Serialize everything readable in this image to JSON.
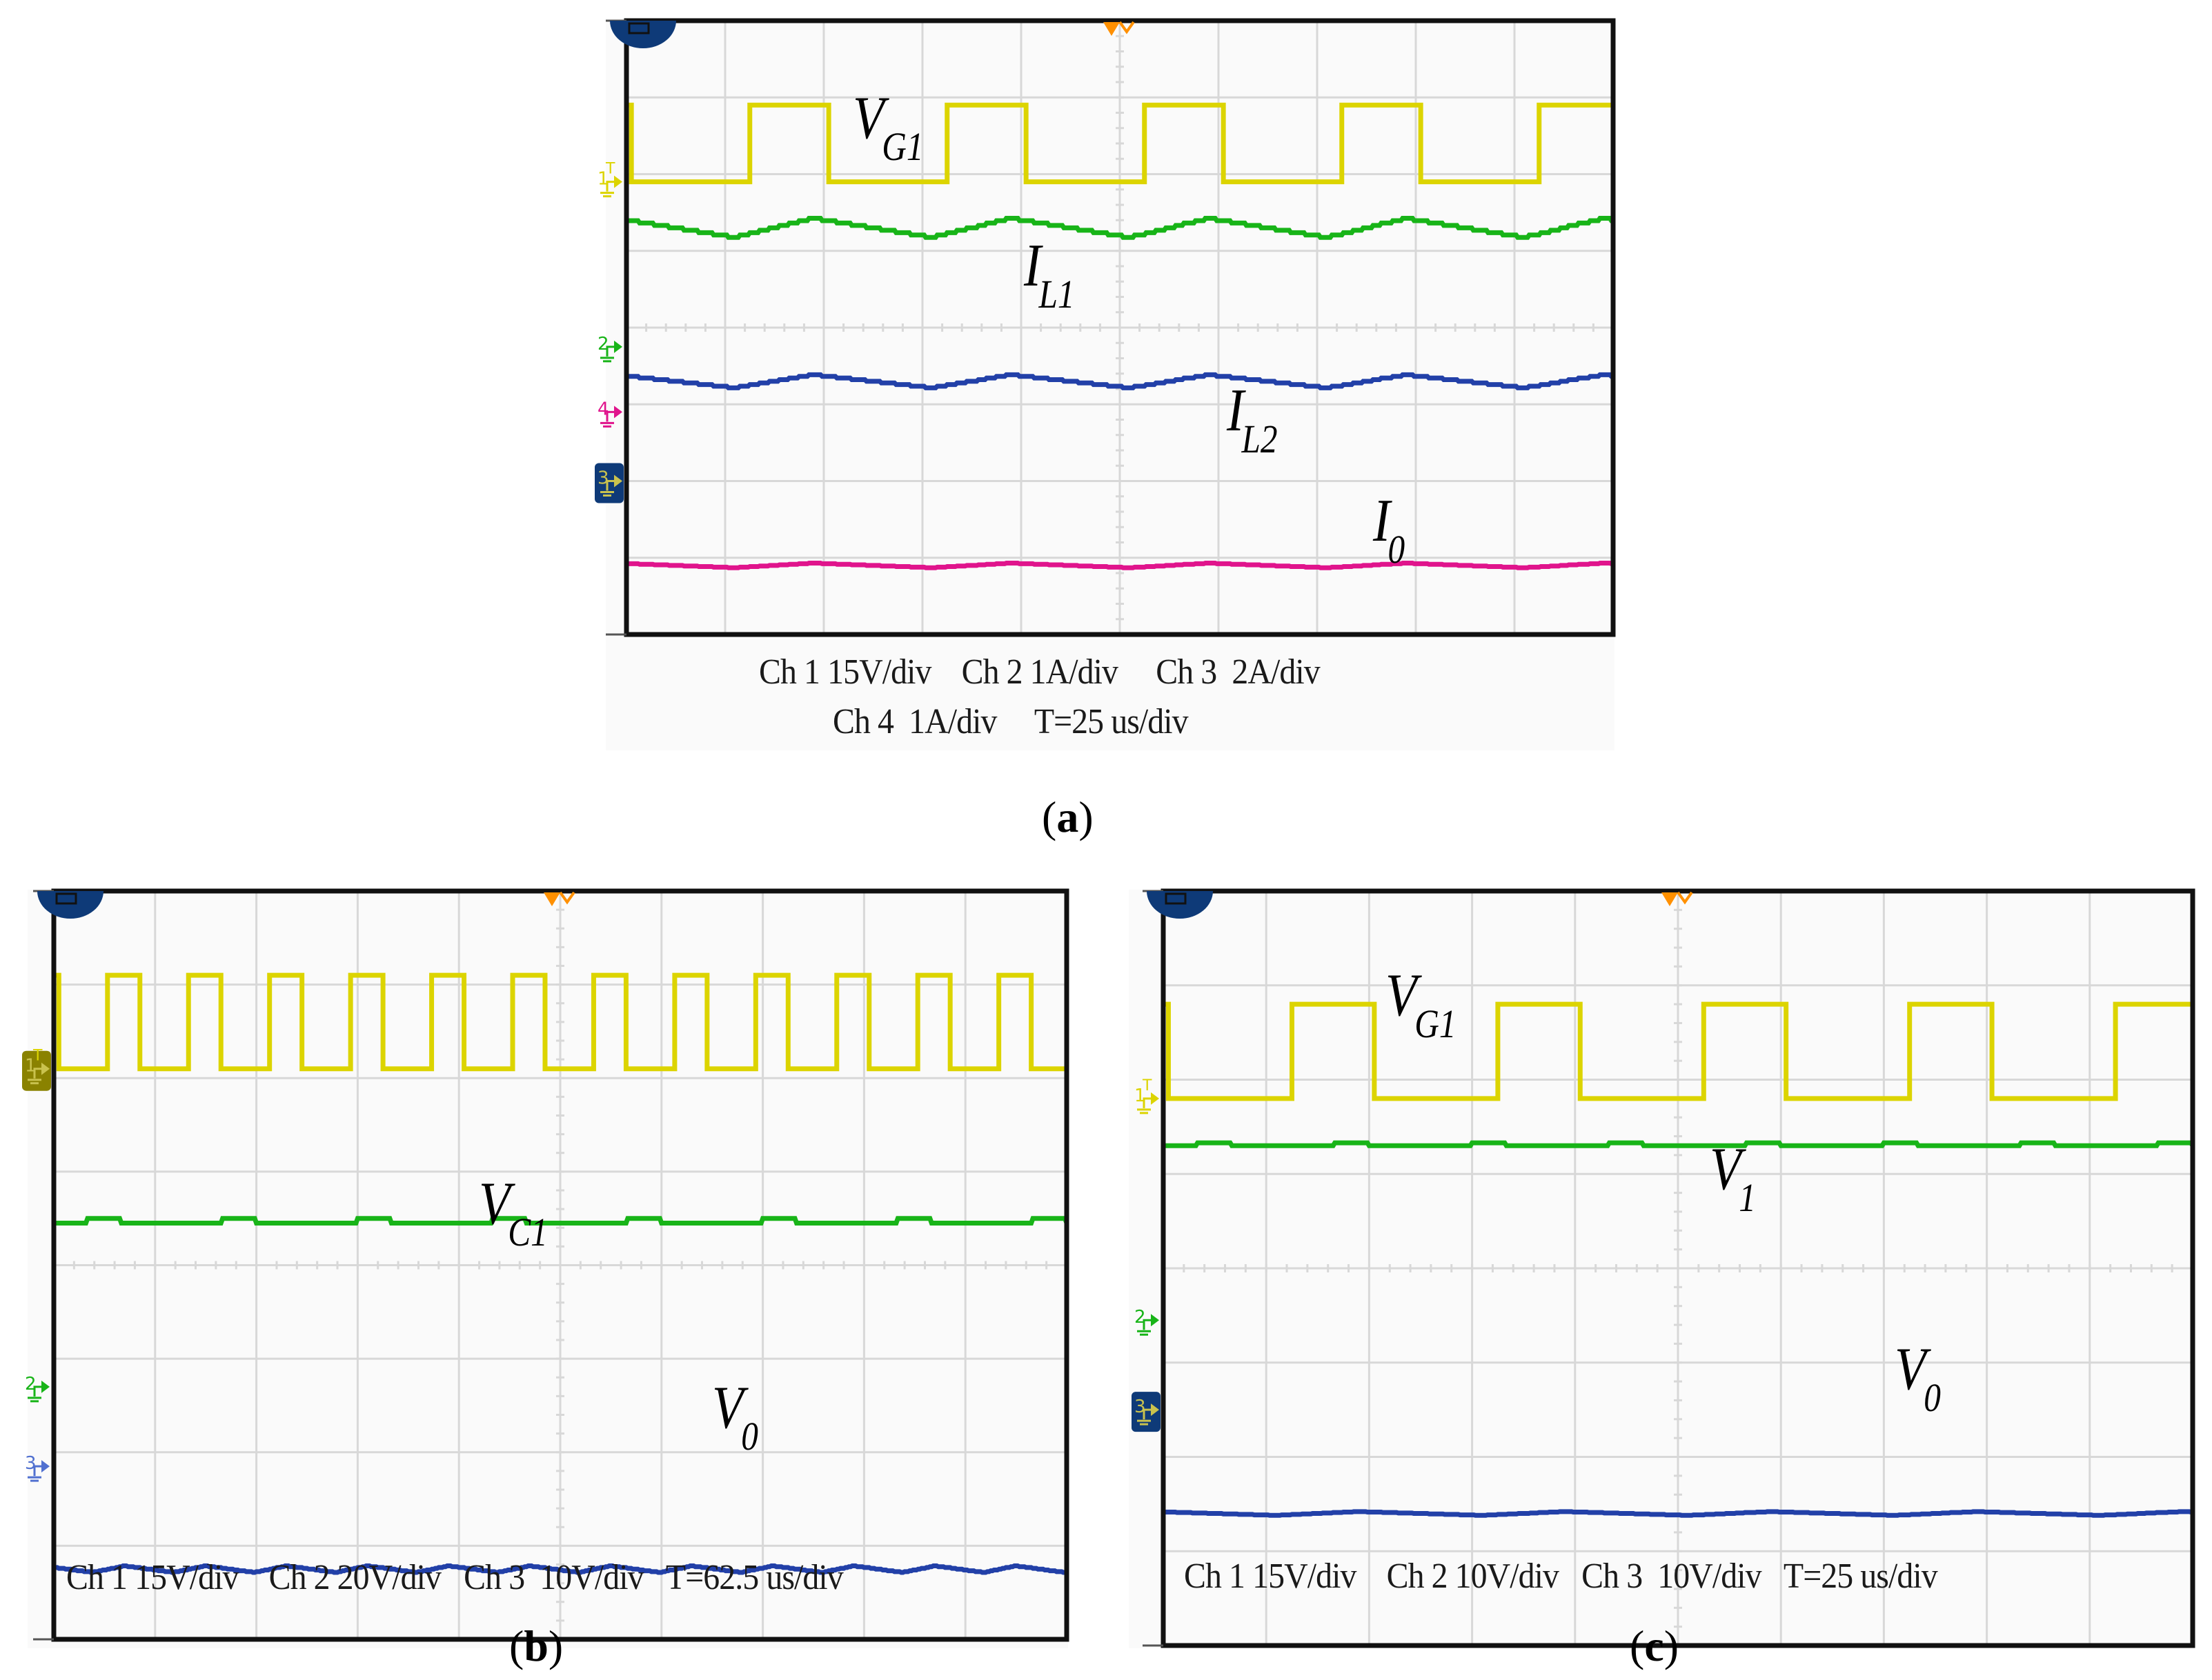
{
  "figure": {
    "panels": [
      {
        "id": "a",
        "sublabel": "a",
        "caption_lines": [
          "Ch 1 15V/div    Ch 2 1A/div     Ch 3  2A/div",
          "Ch 4  1A/div     T=25 us/div"
        ],
        "signal_labels": [
          {
            "main": "V",
            "sub": "G1"
          },
          {
            "main": "I",
            "sub": "L1"
          },
          {
            "main": "I",
            "sub": "L2"
          },
          {
            "main": "I",
            "sub": "0"
          }
        ],
        "channel_markers": [
          "1",
          "2",
          "4",
          "3"
        ]
      },
      {
        "id": "b",
        "sublabel": "b",
        "caption_lines": [
          "Ch 1 15V/div    Ch 2 20V/div   Ch 3  10V/div   T=62.5 us/div"
        ],
        "signal_labels": [
          {
            "main": "V",
            "sub": "C1"
          },
          {
            "main": "V",
            "sub": "0"
          }
        ],
        "channel_markers": [
          "1",
          "2",
          "3"
        ]
      },
      {
        "id": "c",
        "sublabel": "c",
        "caption_lines": [
          "Ch 1 15V/div    Ch 2 10V/div   Ch 3  10V/div   T=25 us/div"
        ],
        "signal_labels": [
          {
            "main": "V",
            "sub": "G1"
          },
          {
            "main": "V",
            "sub": "1"
          },
          {
            "main": "V",
            "sub": "0"
          }
        ],
        "channel_markers": [
          "1",
          "2",
          "3"
        ]
      }
    ],
    "colors": {
      "ch1_yellow": "#dcd400",
      "ch2_green": "#18b418",
      "ch3_blue": "#2240a8",
      "ch4_magenta": "#e0148c",
      "trigger_orange": "#ff9000",
      "grid": "#d8d8d8",
      "frame": "#111111"
    }
  },
  "chart_data": [
    {
      "type": "line",
      "title": "(a)",
      "xlabel": "Time (T=25 us/div)",
      "ylabel": "",
      "grid": {
        "x_divisions": 10,
        "y_divisions": 8
      },
      "x_div": [
        0,
        1,
        2,
        3,
        4,
        5,
        6,
        7,
        8,
        9,
        10
      ],
      "series": [
        {
          "name": "V_G1",
          "channel": "Ch 1",
          "scale": "15V/div",
          "shape": "square wave",
          "period_div": 2.0,
          "duty_cycle": 0.4,
          "high_div": 6.9,
          "low_div": 5.9
        },
        {
          "name": "I_L1",
          "channel": "Ch 2",
          "scale": "1A/div",
          "shape": "triangular ripple",
          "period_div": 2.0,
          "mean_div": 5.3,
          "ripple_pp_div": 0.25
        },
        {
          "name": "I_L2",
          "channel": "Ch 3",
          "scale": "2A/div",
          "shape": "triangular ripple",
          "period_div": 2.0,
          "mean_div": 3.3,
          "ripple_pp_div": 0.17
        },
        {
          "name": "I_0",
          "channel": "Ch 4",
          "scale": "1A/div",
          "shape": "small ripple",
          "period_div": 2.0,
          "mean_div": 0.9,
          "ripple_pp_div": 0.06
        }
      ],
      "legend": [
        "V_G1",
        "I_L1",
        "I_L2",
        "I_0"
      ]
    },
    {
      "type": "line",
      "title": "(b)",
      "xlabel": "Time (T=62.5 us/div)",
      "ylabel": "",
      "grid": {
        "x_divisions": 10,
        "y_divisions": 8
      },
      "series": [
        {
          "name": "V_G1",
          "channel": "Ch 1",
          "scale": "15V/div",
          "shape": "square wave",
          "period_div": 0.8,
          "duty_cycle": 0.4,
          "high_div": 7.1,
          "low_div": 6.1
        },
        {
          "name": "V_C1",
          "channel": "Ch 2",
          "scale": "20V/div",
          "shape": "near-constant",
          "mean_div": 4.45,
          "ripple_pp_div": 0.05
        },
        {
          "name": "V_0",
          "channel": "Ch 3",
          "scale": "10V/div",
          "shape": "small ripple",
          "period_div": 0.8,
          "mean_div": 0.75,
          "ripple_pp_div": 0.07
        }
      ],
      "legend": [
        "V_G1",
        "V_C1",
        "V_0"
      ]
    },
    {
      "type": "line",
      "title": "(c)",
      "xlabel": "Time (T=25 us/div)",
      "ylabel": "",
      "grid": {
        "x_divisions": 10,
        "y_divisions": 8
      },
      "series": [
        {
          "name": "V_G1",
          "channel": "Ch 1",
          "scale": "15V/div",
          "shape": "square wave",
          "period_div": 2.0,
          "duty_cycle": 0.4,
          "high_div": 6.8,
          "low_div": 5.8
        },
        {
          "name": "V_1",
          "channel": "Ch 2",
          "scale": "10V/div",
          "shape": "near-constant",
          "mean_div": 5.3,
          "ripple_pp_div": 0.03
        },
        {
          "name": "V_0",
          "channel": "Ch 3",
          "scale": "10V/div",
          "shape": "small ripple",
          "period_div": 2.0,
          "mean_div": 1.4,
          "ripple_pp_div": 0.04
        }
      ],
      "legend": [
        "V_G1",
        "V_1",
        "V_0"
      ]
    }
  ]
}
